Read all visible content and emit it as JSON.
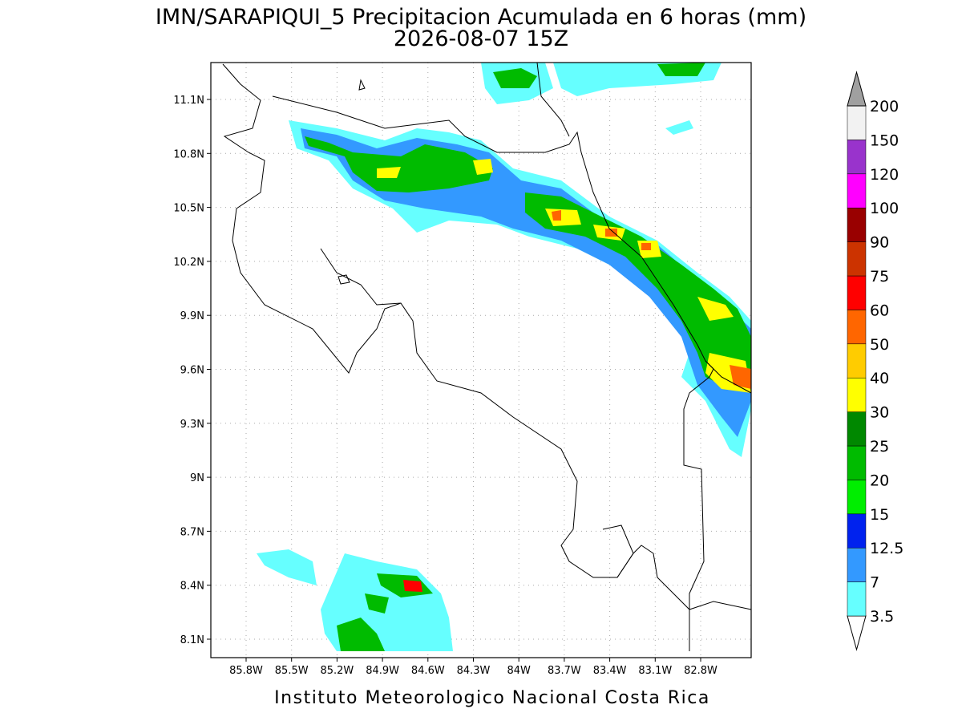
{
  "header": {
    "title": "IMN/SARAPIQUI_5 Precipitacion Acumulada en 6 horas (mm)",
    "subtitle": "2026-08-07 15Z"
  },
  "map": {
    "lon_labels": [
      "85.8W",
      "85.5W",
      "85.2W",
      "84.9W",
      "84.6W",
      "84.3W",
      "84W",
      "83.7W",
      "83.4W",
      "83.1W",
      "82.8W"
    ],
    "lat_labels": [
      "11.1N",
      "10.8N",
      "10.5N",
      "10.2N",
      "9.9N",
      "9.6N",
      "9.3N",
      "9N",
      "8.7N",
      "8.4N",
      "8.1N"
    ]
  },
  "colorbar": {
    "levels": [
      3.5,
      7,
      12.5,
      15,
      20,
      25,
      30,
      40,
      50,
      60,
      75,
      90,
      100,
      120,
      150,
      200
    ],
    "colors": [
      "#ffffff",
      "#66ffff",
      "#3399ff",
      "#0022ee",
      "#00ee00",
      "#00bb00",
      "#008800",
      "#ffff00",
      "#ffcc00",
      "#ff6600",
      "#ff0000",
      "#cc3300",
      "#990000",
      "#ff00ff",
      "#9933cc",
      "#f2f2f2",
      "#a0a0a0"
    ]
  },
  "footer": "Instituto Meteorologico Nacional Costa Rica"
}
